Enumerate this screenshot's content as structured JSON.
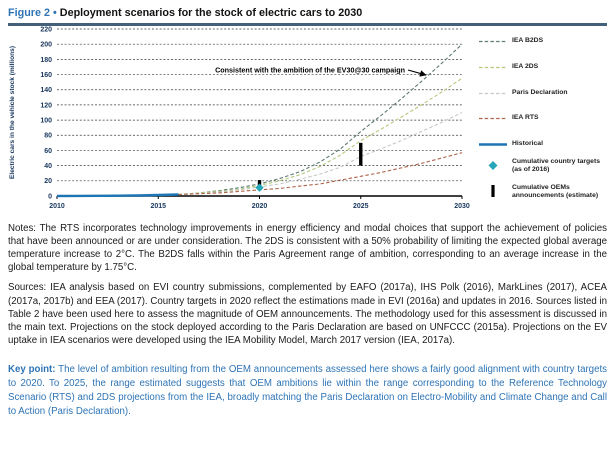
{
  "figure": {
    "label": "Figure 2",
    "separator": "•",
    "title": "Deployment scenarios for the stock of electric cars to 2030"
  },
  "chart_data": {
    "type": "line",
    "title": "",
    "xlabel": "",
    "ylabel": "Electric cars in the vehicle stock (millions)",
    "xlim": [
      2010,
      2030
    ],
    "ylim": [
      0,
      220
    ],
    "x_ticks": [
      2010,
      2015,
      2020,
      2025,
      2030
    ],
    "y_ticks": [
      0,
      20,
      40,
      60,
      80,
      100,
      120,
      140,
      160,
      180,
      200,
      220
    ],
    "grid": "horizontal-dashed",
    "legend_position": "right",
    "series": [
      {
        "name": "IEA B2DS",
        "style": "dashed",
        "color": "#5e7b6f",
        "x": [
          2016,
          2017,
          2018,
          2019,
          2020,
          2021,
          2022,
          2023,
          2024,
          2025,
          2026,
          2027,
          2028,
          2029,
          2030
        ],
        "y": [
          2,
          4,
          7,
          11,
          16,
          23,
          32,
          45,
          62,
          85,
          106,
          128,
          151,
          175,
          200
        ]
      },
      {
        "name": "IEA 2DS",
        "style": "dashed",
        "color": "#b5c87c",
        "x": [
          2016,
          2017,
          2018,
          2019,
          2020,
          2021,
          2022,
          2023,
          2024,
          2025,
          2026,
          2027,
          2028,
          2029,
          2030
        ],
        "y": [
          2,
          4,
          6,
          9,
          14,
          20,
          28,
          39,
          54,
          73,
          88,
          104,
          120,
          137,
          155
        ]
      },
      {
        "name": "Paris Declaration",
        "style": "dashed",
        "color": "#c3cbc4",
        "x": [
          2016,
          2017,
          2018,
          2019,
          2020,
          2021,
          2022,
          2023,
          2024,
          2025,
          2026,
          2027,
          2028,
          2029,
          2030
        ],
        "y": [
          2,
          3,
          5,
          8,
          12,
          16,
          22,
          29,
          38,
          52,
          62,
          73,
          85,
          97,
          110
        ]
      },
      {
        "name": "IEA RTS",
        "style": "dashed",
        "color": "#ad6349",
        "x": [
          2016,
          2017,
          2018,
          2019,
          2020,
          2021,
          2022,
          2023,
          2024,
          2025,
          2026,
          2027,
          2028,
          2029,
          2030
        ],
        "y": [
          2,
          3,
          4,
          6,
          8,
          10,
          13,
          16,
          21,
          26,
          31,
          37,
          43,
          50,
          57
        ]
      },
      {
        "name": "Historical",
        "style": "solid",
        "color": "#1e75b5",
        "x": [
          2010,
          2011,
          2012,
          2013,
          2014,
          2015,
          2016
        ],
        "y": [
          0.02,
          0.07,
          0.2,
          0.4,
          0.7,
          1.3,
          2.0
        ]
      }
    ],
    "point_markers": [
      {
        "name": "Cumulative country targets (as of 2016)",
        "legend_lines": [
          "Cumulative country targets",
          "(as of 2016)"
        ],
        "shape": "diamond",
        "color": "#27a7ba",
        "x": 2020,
        "y": 11
      }
    ],
    "range_markers": [
      {
        "name": "Cumulative OEMs announcements (estimate)",
        "legend_lines": [
          "Cumulative OEMs",
          "announcements (estimate)"
        ],
        "shape": "vertical-bar",
        "color": "#000000",
        "points": [
          {
            "x": 2020,
            "y_low": 13,
            "y_high": 21
          },
          {
            "x": 2025,
            "y_low": 40,
            "y_high": 70
          }
        ]
      }
    ],
    "annotation": {
      "text": "Consistent with the ambition of the EV30@30 campaign",
      "arrow_to": {
        "x": 2028.3,
        "y": 158
      }
    }
  },
  "paragraphs": {
    "notes": "Notes: The RTS incorporates technology improvements in energy efficiency and modal choices that support the achievement of policies that have been announced or are under consideration. The 2DS is consistent with a 50% probability of limiting the expected global average temperature increase to 2°C. The B2DS falls within the Paris Agreement range of ambition, corresponding to an average increase in the global temperature by 1.75°C.",
    "sources": "Sources: IEA analysis based on EVI country submissions, complemented by EAFO (2017a), IHS Polk (2016), MarkLines (2017), ACEA (2017a, 2017b) and EEA (2017). Country targets in 2020 reflect the estimations made in EVI (2016a) and updates in 2016. Sources listed in Table 2 have been used here to assess the magnitude of OEM announcements. The methodology used for this assessment is discussed in the main text. Projections on the stock deployed according to the Paris Declaration are based on UNFCCC (2015a). Projections on the EV uptake in IEA scenarios were developed using the IEA Mobility Model, March 2017 version (IEA, 2017a).",
    "key_point_label": "Key point:",
    "key_point_body": " The level of ambition resulting from the OEM announcements assessed here shows a fairly good alignment with country targets to 2020. To 2025, the range estimated suggests that OEM ambitions lie within the range corresponding to the Reference Technology Scenario (RTS) and 2DS projections from the IEA, broadly matching the Paris Declaration on Electro-Mobility and Climate Change and Call to Action (Paris Declaration)."
  },
  "colors": {
    "figure_label": "#2e74b5",
    "title_rule": "#44617c",
    "key_point": "#2e74b5",
    "axis_text": "#17365d",
    "gridline": "#3a3a3a",
    "annotation_text": "#000000"
  }
}
